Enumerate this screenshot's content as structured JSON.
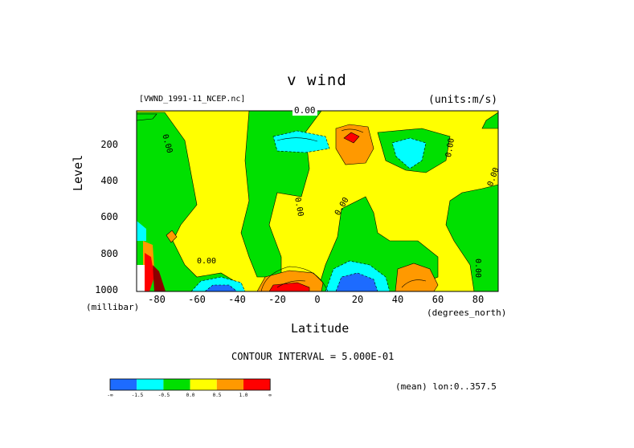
{
  "chart_data": {
    "type": "heatmap",
    "title": "v wind",
    "dataset": "[VWND_1991-11_NCEP.nc]",
    "units": "(units:m/s)",
    "xlabel": "Latitude",
    "ylabel": "Level",
    "x_unit": "(degrees_north)",
    "y_unit": "(millibar)",
    "xlim": [
      -90,
      90
    ],
    "ylim": [
      1000,
      10
    ],
    "x_ticks": [
      "-80",
      "-60",
      "-40",
      "-20",
      "0",
      "20",
      "40",
      "60",
      "80"
    ],
    "y_ticks": [
      "200",
      "400",
      "600",
      "800",
      "1000"
    ],
    "contour_labels": [
      "0.00",
      "0.00",
      "0.00",
      "0.00",
      "0.00",
      "0.00",
      "0.00",
      "0.00",
      "0.00"
    ],
    "contour_interval_text": "CONTOUR INTERVAL = 5.000E-01",
    "mean_text": "(mean) lon:0..357.5",
    "colorbar": {
      "labels": [
        "-∞",
        "-1.5",
        "-0.5",
        "0.0",
        "0.5",
        "1.0",
        "∞"
      ],
      "colors": [
        "#1d6bff",
        "#00ffff",
        "#00e000",
        "#ffff00",
        "#ff9900",
        "#ff0000"
      ]
    },
    "colors": {
      "strong_negative": "#1d6bff",
      "negative": "#00ffff",
      "slight_negative": "#00e000",
      "slight_positive": "#ffff00",
      "positive": "#ff9900",
      "strong_positive": "#ff0000"
    }
  }
}
